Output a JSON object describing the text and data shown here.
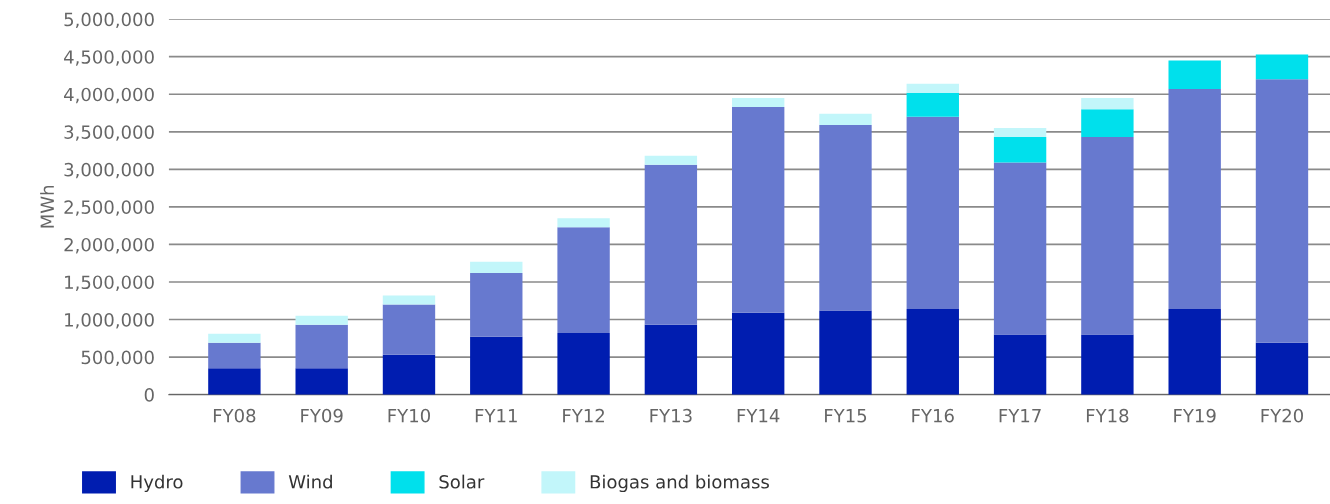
{
  "chart_data": {
    "type": "bar",
    "stacked": true,
    "ylabel": "MWh",
    "categories": [
      "FY08",
      "FY09",
      "FY10",
      "FY11",
      "FY12",
      "FY13",
      "FY14",
      "FY15",
      "FY16",
      "FY17",
      "FY18",
      "FY19",
      "FY20"
    ],
    "series": [
      {
        "name": "Hydro",
        "color": "#001db0",
        "values": [
          350000,
          350000,
          530000,
          770000,
          820000,
          930000,
          1090000,
          1120000,
          1140000,
          800000,
          800000,
          1140000,
          690000
        ]
      },
      {
        "name": "Wind",
        "color": "#6779cf",
        "values": [
          340000,
          580000,
          670000,
          850000,
          1410000,
          2130000,
          2740000,
          2470000,
          2560000,
          2290000,
          2630000,
          2930000,
          3510000
        ]
      },
      {
        "name": "Solar",
        "color": "#00e0ec",
        "values": [
          0,
          0,
          0,
          0,
          0,
          0,
          0,
          0,
          320000,
          340000,
          370000,
          380000,
          330000
        ]
      },
      {
        "name": "Biogas and biomass",
        "color": "#c2f6fa",
        "values": [
          120000,
          120000,
          120000,
          150000,
          120000,
          120000,
          120000,
          150000,
          120000,
          120000,
          150000,
          0,
          0
        ]
      }
    ],
    "ylim": [
      0,
      5000000
    ],
    "yticks": [
      0,
      {
        "value": 500000,
        "label": "500,000"
      },
      {
        "value": 1000000,
        "label": "1,000,000"
      },
      {
        "value": 1500000,
        "label": "1,500,000"
      },
      {
        "value": 2000000,
        "label": "2,000,000"
      },
      {
        "value": 2500000,
        "label": "2,500,000"
      },
      {
        "value": 3000000,
        "label": "3,000,000"
      },
      {
        "value": 3500000,
        "label": "3,500,000"
      },
      {
        "value": 4000000,
        "label": "4,000,000"
      },
      {
        "value": 4500000,
        "label": "4,500,000"
      },
      {
        "value": 5000000,
        "label": "5,000,000"
      }
    ],
    "grid": "y",
    "legend": "bottom left"
  }
}
